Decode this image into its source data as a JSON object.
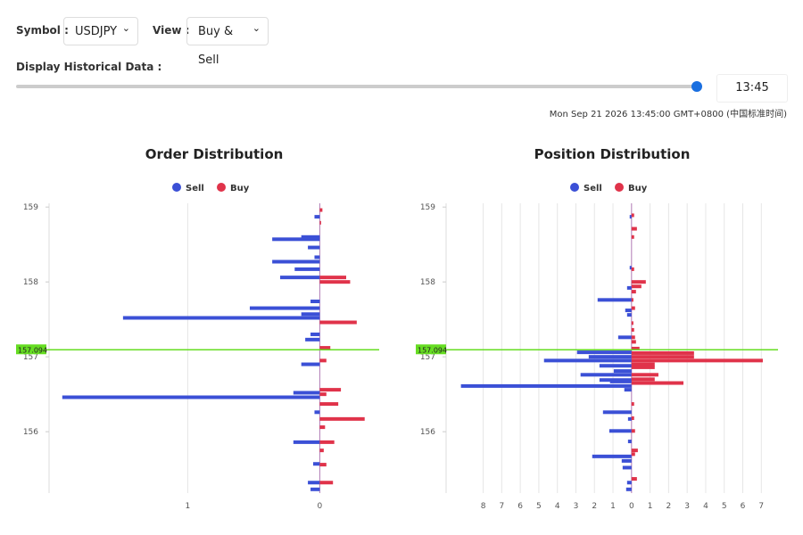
{
  "controls": {
    "symbol_label": "Symbol :",
    "symbol": "USDJPY",
    "view_label": "View :",
    "view": "Buy & Sell",
    "history_label": "Display Historical Data :",
    "time": "13:45",
    "timestamp": "Mon Sep 21 2026 13:45:00 GMT+0800 (中国标准时间)"
  },
  "chart_data": [
    {
      "type": "bar",
      "orientation": "horizontal",
      "title": "Order Distribution",
      "current_price": 157.094,
      "ylim": [
        155.18,
        159.05
      ],
      "yticks": [
        156,
        157,
        158,
        159
      ],
      "xlim": [
        -2.05,
        0.45
      ],
      "xticks": [
        {
          "value": -1,
          "label": "1"
        },
        0
      ],
      "grid": true,
      "legend": "top",
      "series": [
        {
          "name": "Sell",
          "color": "#3b50d6",
          "y": [
            158.87,
            158.6,
            158.57,
            158.46,
            158.33,
            158.27,
            158.17,
            158.06,
            157.74,
            157.65,
            157.57,
            157.52,
            157.3,
            157.23,
            156.9,
            156.52,
            156.46,
            156.26,
            155.86,
            155.57,
            155.32,
            155.23
          ],
          "values": [
            -0.04,
            -0.14,
            -0.36,
            -0.09,
            -0.04,
            -0.36,
            -0.19,
            -0.3,
            -0.07,
            -0.53,
            -0.14,
            -1.49,
            -0.07,
            -0.11,
            -0.14,
            -0.2,
            -1.95,
            -0.04,
            -0.2,
            -0.05,
            -0.09,
            -0.07
          ]
        },
        {
          "name": "Buy",
          "color": "#e0334a",
          "y": [
            158.96,
            158.79,
            158.06,
            158.0,
            157.46,
            157.12,
            156.95,
            156.56,
            156.5,
            156.37,
            156.17,
            156.06,
            155.86,
            155.75,
            155.56,
            155.32
          ],
          "values": [
            0.02,
            0.01,
            0.2,
            0.23,
            0.28,
            0.08,
            0.05,
            0.16,
            0.05,
            0.14,
            0.34,
            0.04,
            0.11,
            0.03,
            0.05,
            0.1
          ]
        }
      ]
    },
    {
      "type": "bar",
      "orientation": "horizontal",
      "title": "Position Distribution",
      "current_price": 157.094,
      "ylim": [
        155.18,
        159.05
      ],
      "yticks": [
        156,
        157,
        158,
        159
      ],
      "xlim": [
        -10,
        7.9
      ],
      "xticks": [
        {
          "value": -8,
          "label": "8"
        },
        {
          "value": -7,
          "label": "7"
        },
        {
          "value": -6,
          "label": "6"
        },
        {
          "value": -5,
          "label": "5"
        },
        {
          "value": -4,
          "label": "4"
        },
        {
          "value": -3,
          "label": "3"
        },
        {
          "value": -2,
          "label": "2"
        },
        {
          "value": -1,
          "label": "1"
        },
        0,
        1,
        2,
        3,
        4,
        5,
        6,
        7
      ],
      "grid": true,
      "legend": "top",
      "series": [
        {
          "name": "Sell",
          "color": "#3b50d6",
          "y": [
            158.87,
            158.19,
            157.92,
            157.76,
            157.62,
            157.56,
            157.26,
            157.06,
            157.0,
            156.95,
            156.88,
            156.81,
            156.76,
            156.69,
            156.67,
            156.61,
            156.56,
            156.26,
            156.17,
            156.01,
            155.87,
            155.67,
            155.61,
            155.52,
            155.32,
            155.23
          ],
          "values": [
            -0.1,
            -0.1,
            -0.24,
            -1.83,
            -0.34,
            -0.24,
            -0.72,
            -2.94,
            -2.31,
            -4.72,
            -1.73,
            -0.96,
            -2.75,
            -1.73,
            -1.16,
            -9.2,
            -0.39,
            -1.54,
            -0.19,
            -1.2,
            -0.19,
            -2.12,
            -0.53,
            -0.48,
            -0.24,
            -0.29
          ]
        },
        {
          "name": "Buy",
          "color": "#e0334a",
          "y": [
            158.89,
            158.71,
            158.6,
            158.17,
            158.0,
            157.94,
            157.87,
            157.76,
            157.65,
            157.45,
            157.36,
            157.26,
            157.2,
            157.11,
            157.05,
            157.0,
            156.95,
            156.9,
            156.86,
            156.76,
            156.7,
            156.65,
            156.37,
            156.18,
            156.01,
            155.75,
            155.7,
            155.37
          ],
          "values": [
            0.14,
            0.29,
            0.14,
            0.14,
            0.77,
            0.53,
            0.24,
            0.1,
            0.19,
            0.1,
            0.14,
            0.19,
            0.24,
            0.43,
            3.37,
            3.37,
            7.08,
            1.25,
            1.25,
            1.45,
            1.25,
            2.8,
            0.14,
            0.14,
            0.19,
            0.34,
            0.19,
            0.29
          ]
        }
      ]
    }
  ]
}
